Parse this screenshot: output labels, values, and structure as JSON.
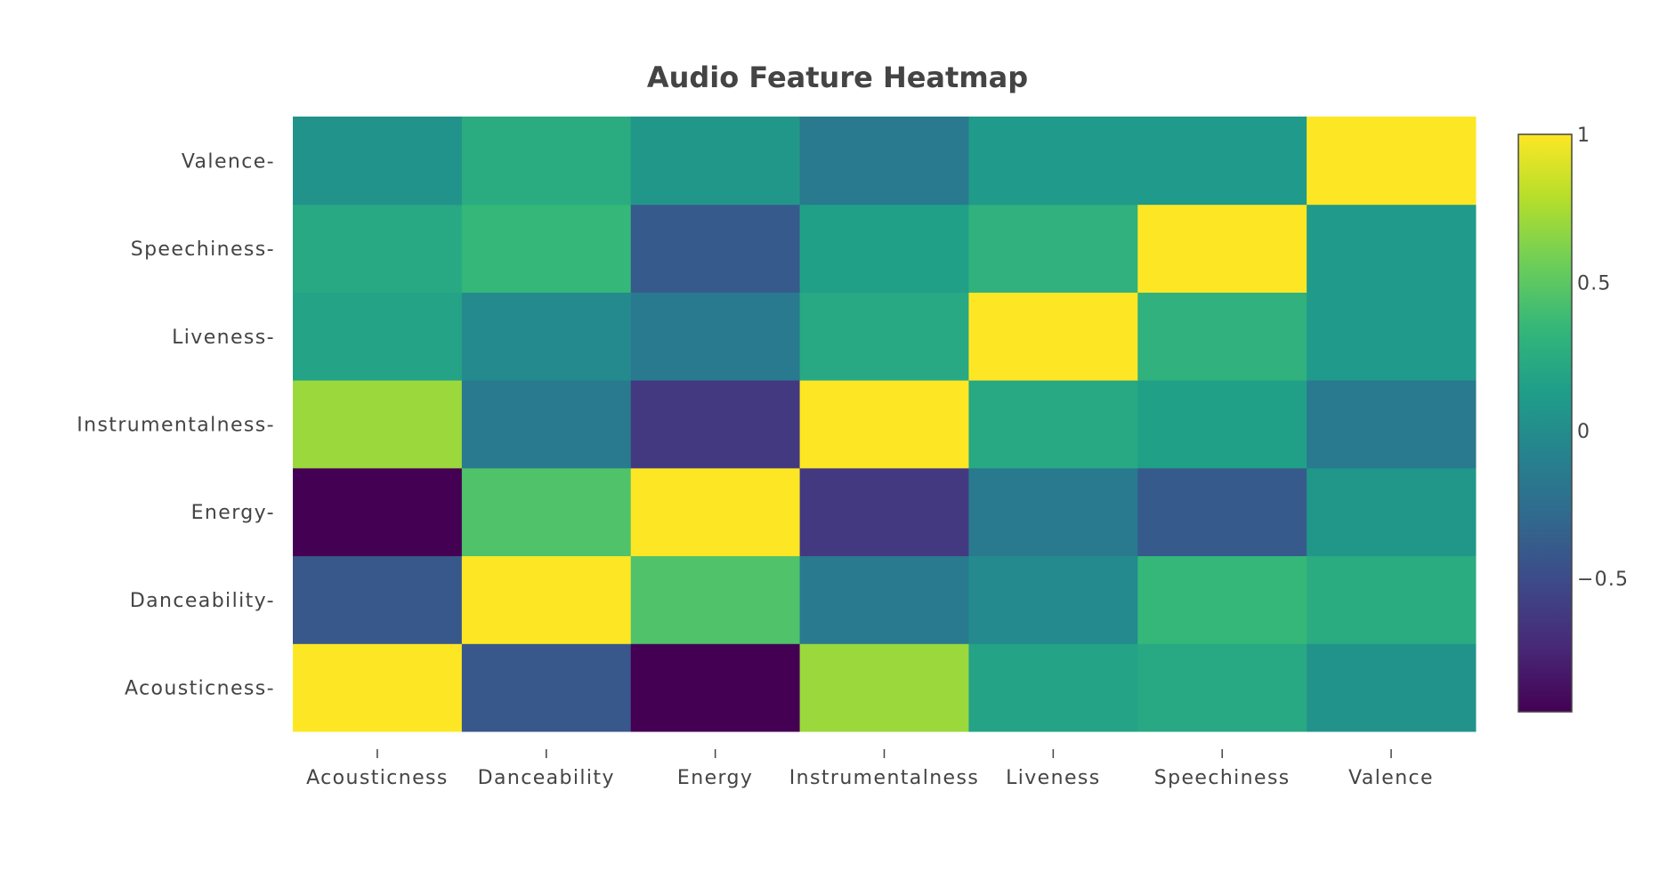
{
  "chart_data": {
    "type": "heatmap",
    "title": "Audio Feature Heatmap",
    "x_categories": [
      "Acousticness",
      "Danceability",
      "Energy",
      "Instrumentalness",
      "Liveness",
      "Speechiness",
      "Valence"
    ],
    "y_categories": [
      "Acousticness",
      "Danceability",
      "Energy",
      "Instrumentalness",
      "Liveness",
      "Speechiness",
      "Valence"
    ],
    "z": [
      [
        1.0,
        -0.42,
        -0.95,
        0.7,
        0.18,
        0.22,
        0.05
      ],
      [
        -0.42,
        1.0,
        0.45,
        -0.15,
        -0.02,
        0.35,
        0.25
      ],
      [
        -0.95,
        0.45,
        1.0,
        -0.62,
        -0.15,
        -0.4,
        0.08
      ],
      [
        0.7,
        -0.15,
        -0.62,
        1.0,
        0.22,
        0.15,
        -0.15
      ],
      [
        0.18,
        -0.02,
        -0.15,
        0.22,
        1.0,
        0.3,
        0.1
      ],
      [
        0.22,
        0.35,
        -0.4,
        0.15,
        0.3,
        1.0,
        0.1
      ],
      [
        0.05,
        0.25,
        0.08,
        -0.15,
        0.1,
        0.1,
        1.0
      ]
    ],
    "colorscale": "Viridis",
    "zmin": -0.95,
    "zmax": 1.0,
    "colorbar": {
      "tickvals": [
        1,
        0.5,
        0,
        -0.5
      ],
      "ticktext": [
        "1",
        "0.5",
        "0",
        "−0.5"
      ]
    },
    "viridis_stops": [
      "#440154",
      "#482878",
      "#3e4989",
      "#31688e",
      "#26828e",
      "#1f9e89",
      "#35b779",
      "#6ece58",
      "#b5de2b",
      "#fde725"
    ],
    "text_color": "#444444",
    "grid": false
  }
}
